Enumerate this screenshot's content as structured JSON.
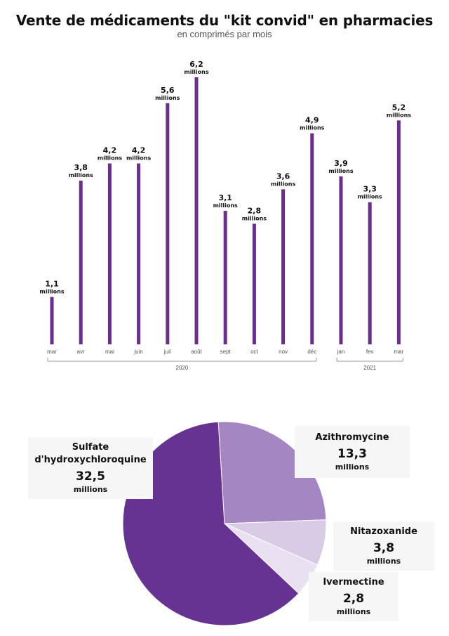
{
  "title": "Vente de médicaments du \"kit convid\" en pharmacies",
  "subtitle": "en comprimés par mois",
  "colors": {
    "bar": "#6a2e8e",
    "axis": "#999999",
    "label": "#111111"
  },
  "chart_data": [
    {
      "type": "bar",
      "categories": [
        "mar",
        "avr",
        "mai",
        "juin",
        "juil",
        "août",
        "sept",
        "oct",
        "nov",
        "déc",
        "jan",
        "fev",
        "mar"
      ],
      "values": [
        1.1,
        3.8,
        4.2,
        4.2,
        5.6,
        6.2,
        3.1,
        2.8,
        3.6,
        4.9,
        3.9,
        3.3,
        5.2
      ],
      "value_labels": [
        "1,1",
        "3,8",
        "4,2",
        "4,2",
        "5,6",
        "6,2",
        "3,1",
        "2,8",
        "3,6",
        "4,9",
        "3,9",
        "3,3",
        "5,2"
      ],
      "unit": "millions",
      "year_groups": [
        {
          "label": "2020",
          "first_index": 0,
          "last_index": 9
        },
        {
          "label": "2021",
          "first_index": 10,
          "last_index": 12
        }
      ],
      "ylim": [
        0,
        6.2
      ]
    },
    {
      "type": "pie",
      "slices": [
        {
          "name": "Sulfate d'hydroxychloroquine",
          "name_lines": [
            "Sulfate",
            "d'hydroxychloroquine"
          ],
          "value": 32.5,
          "value_label": "32,5",
          "unit": "millions",
          "color": "#673393"
        },
        {
          "name": "Azithromycine",
          "name_lines": [
            "Azithromycine"
          ],
          "value": 13.3,
          "value_label": "13,3",
          "unit": "millions",
          "color": "#a386c2"
        },
        {
          "name": "Nitazoxanide",
          "name_lines": [
            "Nitazoxanide"
          ],
          "value": 3.8,
          "value_label": "3,8",
          "unit": "millions",
          "color": "#d8cbe6"
        },
        {
          "name": "Ivermectine",
          "name_lines": [
            "Ivermectine"
          ],
          "value": 2.8,
          "value_label": "2,8",
          "unit": "millions",
          "color": "#e9e1f1"
        }
      ]
    }
  ]
}
